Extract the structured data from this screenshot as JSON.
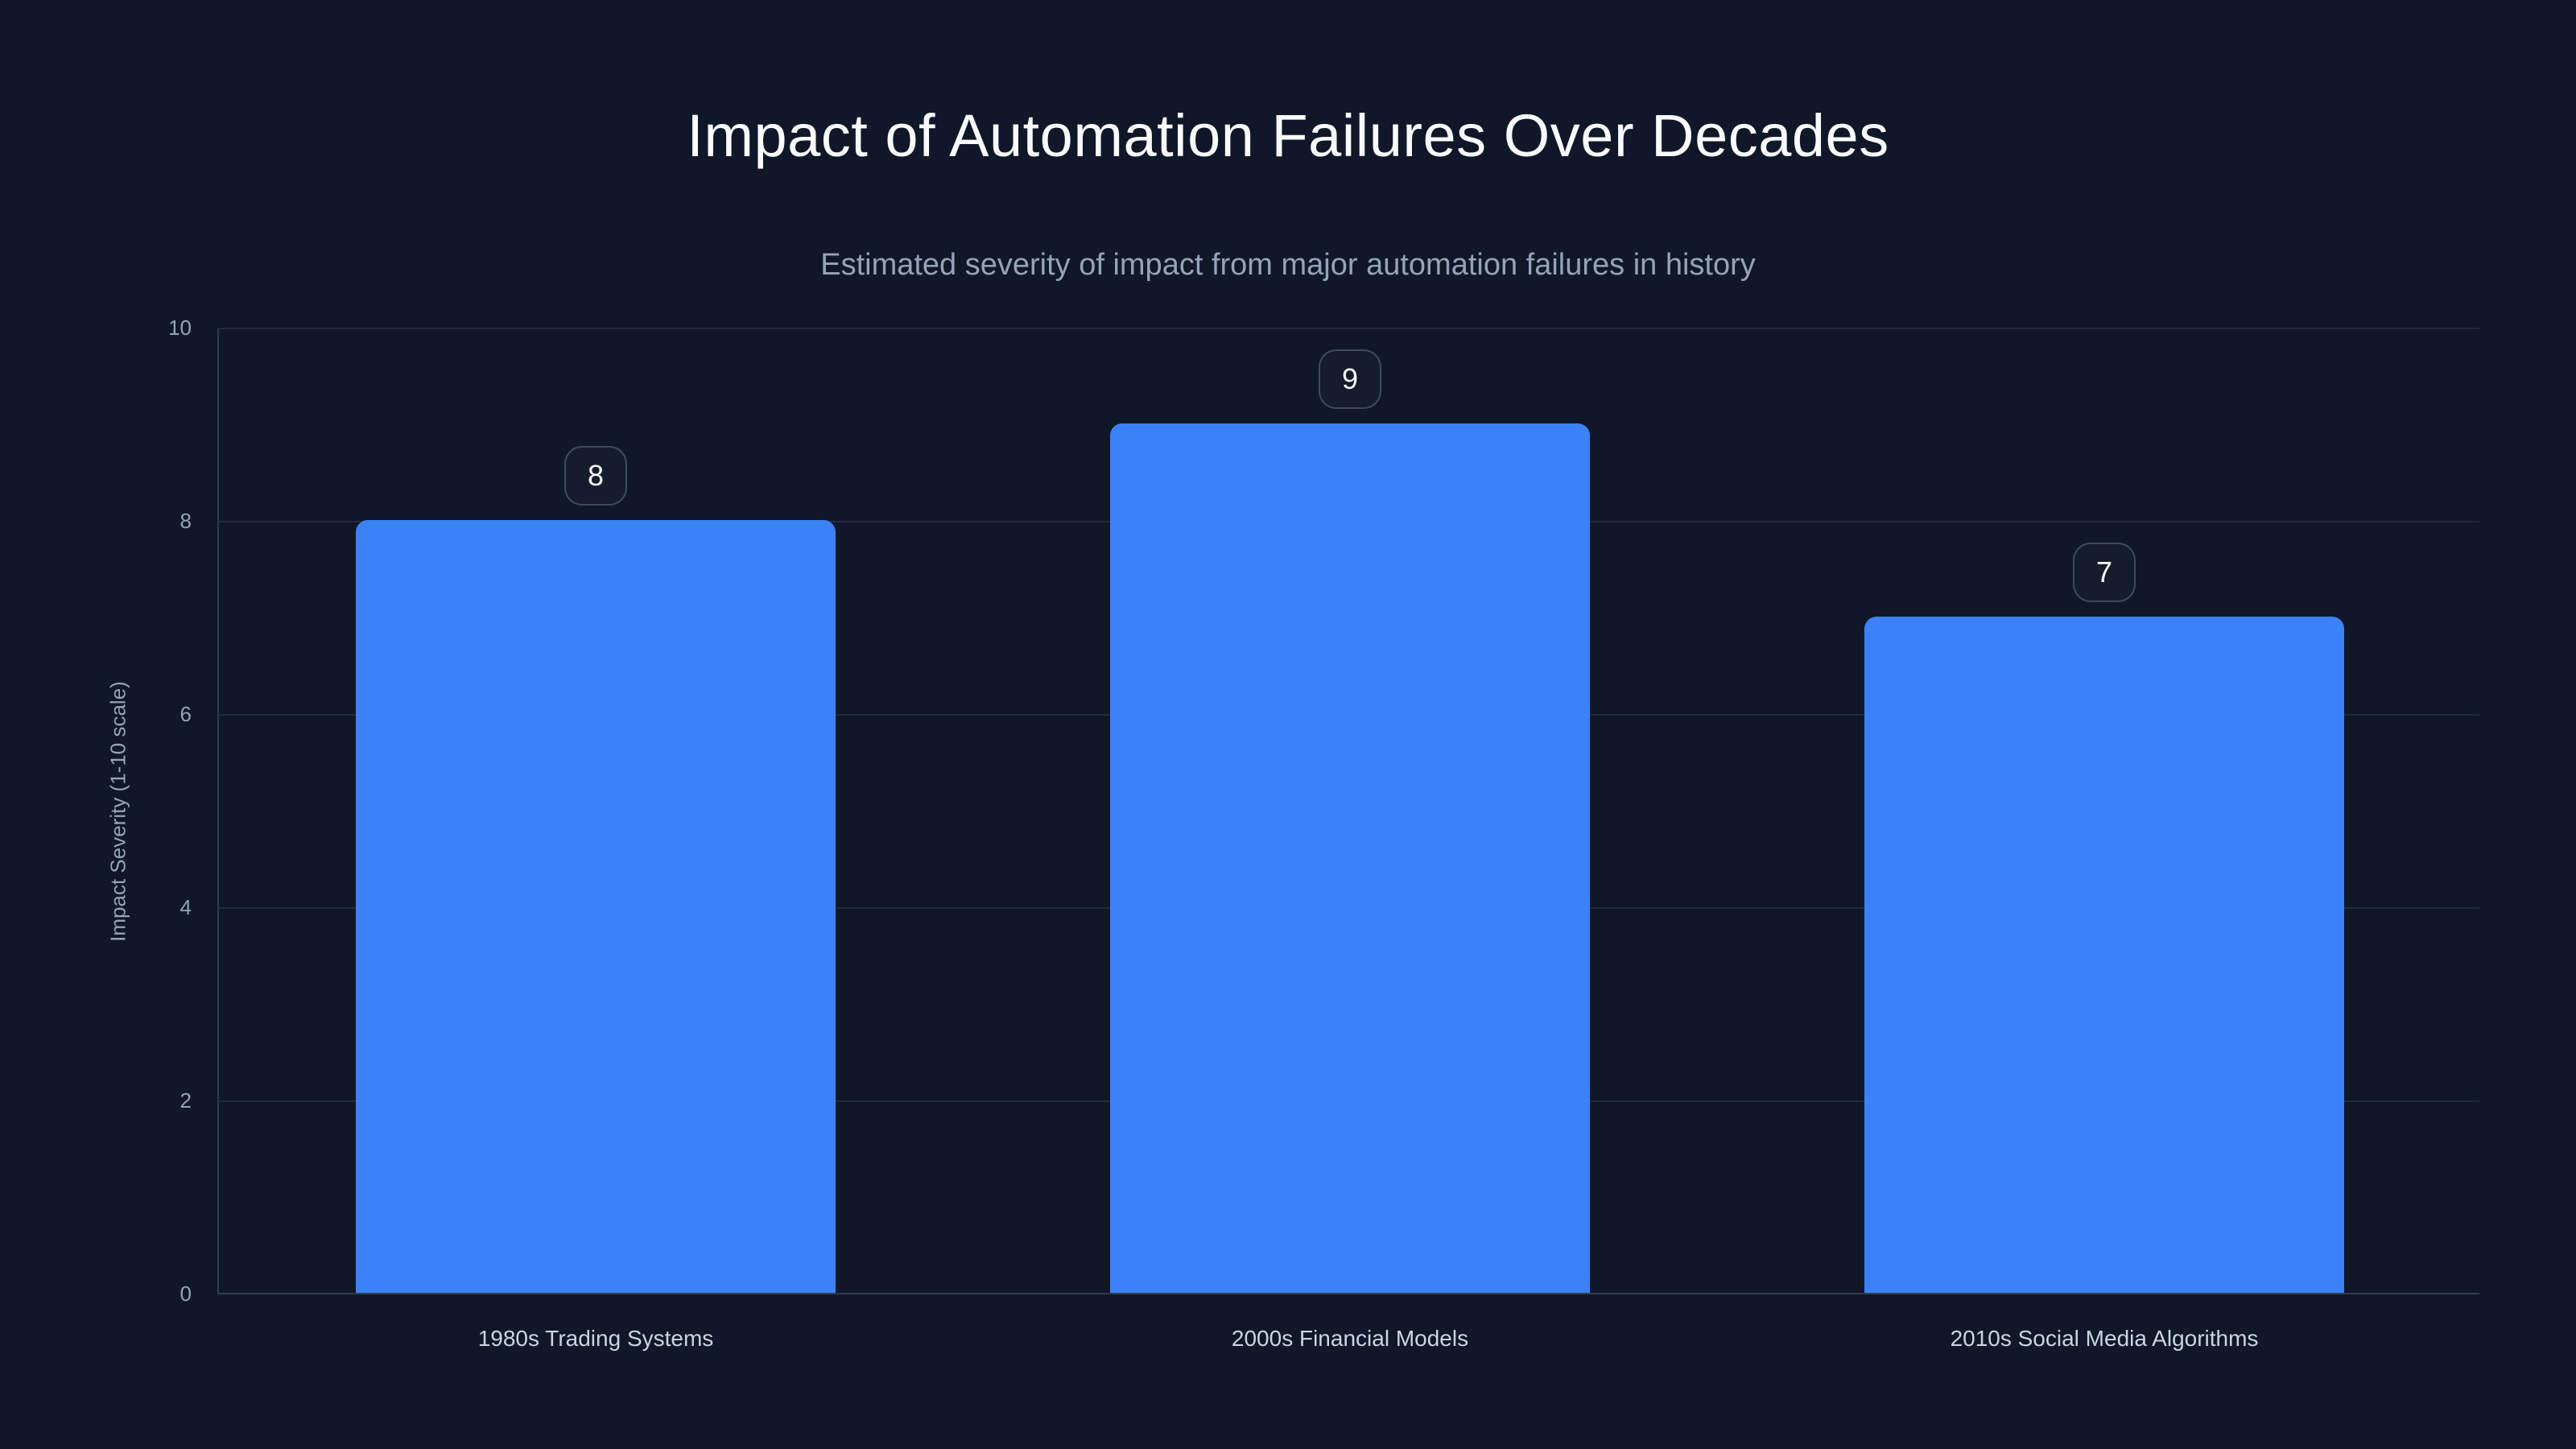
{
  "header": {
    "title": "Impact of Automation Failures Over Decades",
    "subtitle": "Estimated severity of impact from major automation failures in history"
  },
  "chart_data": {
    "type": "bar",
    "title": "Impact of Automation Failures Over Decades",
    "subtitle": "Estimated severity of impact from major automation failures in history",
    "categories": [
      "1980s Trading Systems",
      "2000s Financial Models",
      "2010s Social Media Algorithms"
    ],
    "values": [
      8,
      9,
      7
    ],
    "value_labels": [
      "8",
      "9",
      "7"
    ],
    "xlabel": "",
    "ylabel": "Impact Severity (1-10 scale)",
    "ylim": [
      0,
      10
    ],
    "yticks": [
      0,
      2,
      4,
      6,
      8,
      10
    ],
    "grid": true,
    "legend": false,
    "bar_color": "#3b82f6",
    "background_color": "#0f1728"
  },
  "colors": {
    "background": "#0f1728",
    "bar": "#3b82f6",
    "title_text": "#f8fafc",
    "subtitle_text": "#94a3b8",
    "tick_text": "#94a3b8",
    "category_text": "#cbd5e1",
    "grid_line": "rgba(148,163,184,0.14)",
    "axis_line": "rgba(148,163,184,0.26)",
    "badge_border": "rgba(148,163,184,0.35)",
    "badge_text": "#f8fafc"
  }
}
